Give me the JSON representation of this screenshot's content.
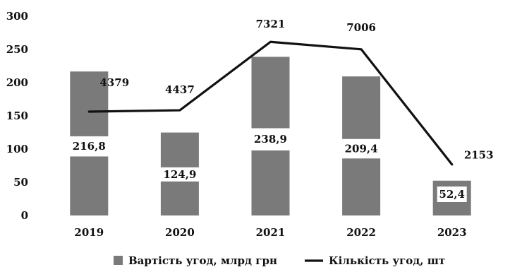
{
  "chart_data": {
    "type": "bar",
    "categories": [
      "2019",
      "2020",
      "2021",
      "2022",
      "2023"
    ],
    "ylim": [
      0,
      300
    ],
    "yticks": [
      0,
      50,
      100,
      150,
      200,
      250,
      300
    ],
    "grid": false,
    "legend_position": "bottom",
    "series": [
      {
        "name": "Вартість угод, млрд грн",
        "kind": "bar",
        "color": "#7a7a7a",
        "values": [
          216.8,
          124.9,
          238.9,
          209.4,
          52.4
        ],
        "labels": [
          "216,8",
          "124,9",
          "238,9",
          "209,4",
          "52,4"
        ]
      },
      {
        "name": "Кількість угод, шт",
        "kind": "line",
        "color": "#111111",
        "values": [
          4379,
          4437,
          7321,
          7006,
          2153
        ],
        "labels": [
          "4379",
          "4437",
          "7321",
          "7006",
          "2153"
        ]
      }
    ]
  }
}
